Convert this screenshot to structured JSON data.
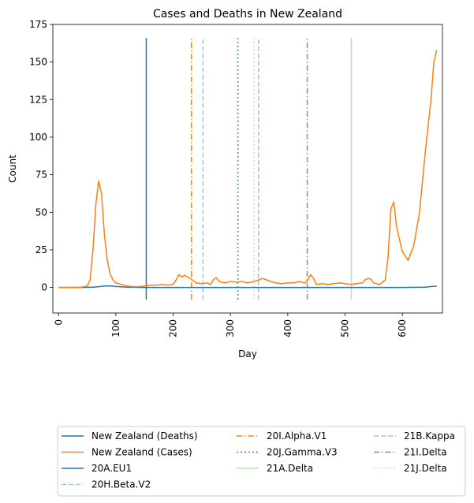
{
  "chart_data": {
    "type": "line",
    "title": "Cases and Deaths in New Zealand",
    "xlabel": "Day",
    "ylabel": "Count",
    "xlim": [
      -10,
      670
    ],
    "ylim": [
      -17,
      175
    ],
    "xticks": [
      0,
      100,
      200,
      300,
      400,
      500,
      600
    ],
    "yticks": [
      0,
      25,
      50,
      75,
      100,
      125,
      150,
      175
    ],
    "grid": false,
    "legend_position": "bottom",
    "series": [
      {
        "name": "New Zealand (Deaths)",
        "color": "#1f77b4",
        "dash": "solid",
        "x": [
          0,
          20,
          40,
          60,
          70,
          80,
          90,
          100,
          120,
          150,
          200,
          250,
          300,
          350,
          400,
          450,
          500,
          550,
          600,
          640,
          650,
          660
        ],
        "y": [
          0,
          0,
          0,
          0.2,
          0.5,
          1,
          1,
          0.6,
          0.2,
          0,
          0,
          0,
          0,
          0,
          0,
          0,
          0,
          0,
          0,
          0.2,
          0.6,
          0.8
        ]
      },
      {
        "name": "New Zealand (Cases)",
        "color": "#ff7f0e",
        "dash": "solid",
        "x": [
          0,
          20,
          40,
          50,
          55,
          60,
          65,
          70,
          75,
          80,
          85,
          90,
          95,
          100,
          110,
          120,
          130,
          140,
          150,
          160,
          170,
          180,
          190,
          200,
          205,
          210,
          215,
          220,
          230,
          240,
          250,
          260,
          265,
          270,
          275,
          280,
          290,
          300,
          310,
          320,
          330,
          340,
          350,
          355,
          360,
          370,
          380,
          390,
          400,
          410,
          420,
          430,
          435,
          440,
          445,
          450,
          460,
          470,
          480,
          490,
          500,
          510,
          520,
          530,
          535,
          540,
          545,
          550,
          560,
          570,
          575,
          580,
          585,
          590,
          600,
          610,
          620,
          630,
          640,
          650,
          655,
          660
        ],
        "y": [
          0,
          0,
          0.2,
          1,
          5,
          25,
          55,
          71,
          62,
          35,
          18,
          9,
          5,
          3,
          2,
          1,
          0.5,
          0.5,
          1,
          1.5,
          1.5,
          2,
          1.5,
          2,
          5,
          8.5,
          7,
          8,
          6,
          3,
          2.5,
          3,
          2,
          5,
          6.5,
          4,
          3,
          4,
          3.5,
          4,
          3,
          4,
          5,
          6,
          5.5,
          4,
          3,
          2.5,
          3,
          3,
          4,
          3,
          5,
          8.5,
          6,
          2,
          2.5,
          2,
          2.5,
          3,
          2.5,
          2,
          2.5,
          3,
          5,
          6,
          5.5,
          3,
          2,
          5,
          20,
          52,
          57,
          40,
          24,
          18,
          28,
          50,
          90,
          125,
          150,
          158
        ]
      }
    ],
    "variant_lines": [
      {
        "name": "20A.EU1",
        "x": 153,
        "color": "#1f77b4",
        "dash": "solid"
      },
      {
        "name": "20H.Beta.V2",
        "x": 252,
        "color": "#9ecae1",
        "dash": "dashed"
      },
      {
        "name": "20I.Alpha.V1",
        "x": 232,
        "color": "#ff7f0e",
        "dash": "dashdot"
      },
      {
        "name": "20J.Gamma.V3",
        "x": 313,
        "color": "#2ca02c",
        "dash": "dotted"
      },
      {
        "name": "21A.Delta",
        "x": 511,
        "color": "#b5e3a8",
        "dash": "solid"
      },
      {
        "name": "21B.Kappa",
        "x": 349,
        "color": "#bcb2dc",
        "dash": "dashed"
      },
      {
        "name": "21I.Delta",
        "x": 434,
        "color": "#8c8c8c",
        "dash": "dashdot"
      },
      {
        "name": "21J.Delta",
        "x": 341,
        "color": "#d9d0ec",
        "dash": "dotted"
      }
    ],
    "legend": [
      [
        "New Zealand (Deaths)",
        "New Zealand (Cases)",
        "20A.EU1",
        "20H.Beta.V2"
      ],
      [
        "20I.Alpha.V1",
        "20J.Gamma.V3",
        "21A.Delta"
      ],
      [
        "21B.Kappa",
        "21I.Delta",
        "21J.Delta"
      ]
    ]
  }
}
